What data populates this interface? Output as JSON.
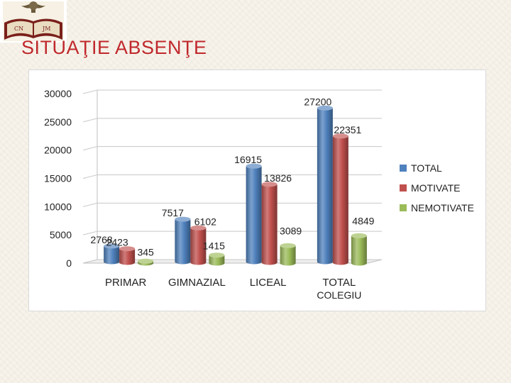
{
  "slide": {
    "title": "SITUAŢIE ABSENŢE",
    "logo": {
      "icon": "school-crest-icon",
      "letters_left": "CN",
      "letters_right": "JM"
    }
  },
  "colors": {
    "TOTAL": "#4f81bd",
    "MOTIVATE": "#c0504d",
    "NEMOTIVATE": "#9bbb59",
    "title": "#c0282c"
  },
  "chart_data": {
    "type": "bar",
    "style": "3d-clustered-cylinder",
    "title": "",
    "xlabel": "",
    "ylabel": "",
    "categories": [
      "PRIMAR",
      "GIMNAZIAL",
      "LICEAL",
      "TOTAL COLEGIU"
    ],
    "series": [
      {
        "name": "TOTAL",
        "values": [
          2768,
          7517,
          16915,
          27200
        ]
      },
      {
        "name": "MOTIVATE",
        "values": [
          2423,
          6102,
          13826,
          22351
        ]
      },
      {
        "name": "NEMOTIVATE",
        "values": [
          345,
          1415,
          3089,
          4849
        ]
      }
    ],
    "ylim": [
      0,
      30000
    ],
    "yticks": [
      0,
      5000,
      10000,
      15000,
      20000,
      25000,
      30000
    ],
    "grid": true,
    "legend_position": "right"
  }
}
